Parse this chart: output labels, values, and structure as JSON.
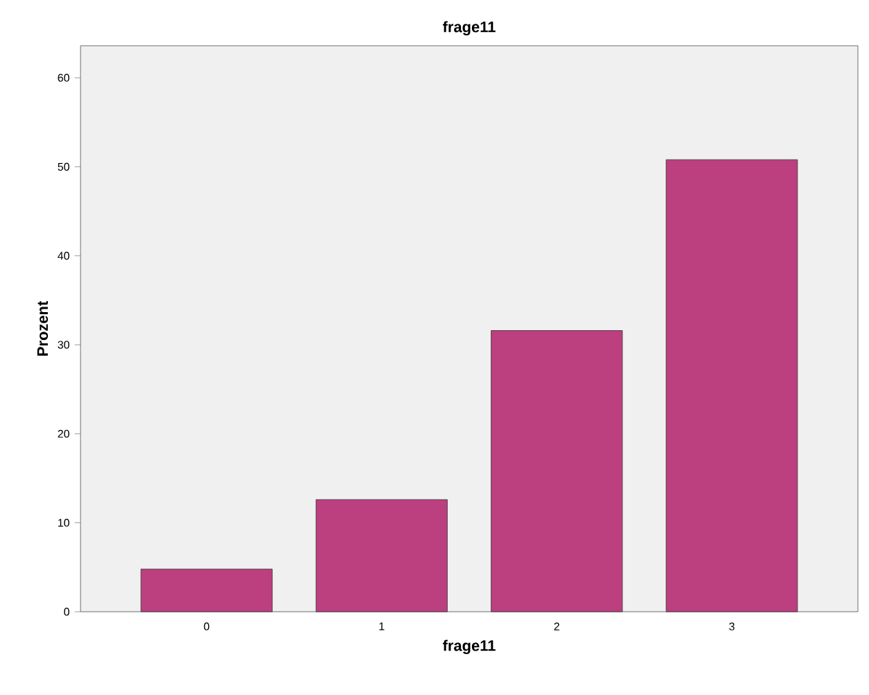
{
  "chart_data": {
    "type": "bar",
    "title": "frage11",
    "xlabel": "frage11",
    "ylabel": "Prozent",
    "categories": [
      "0",
      "1",
      "2",
      "3"
    ],
    "values": [
      4.8,
      12.6,
      31.6,
      50.8
    ],
    "color": "#bc3f7f",
    "ylim": [
      0,
      63.6
    ],
    "yticks": [
      0,
      10,
      20,
      30,
      40,
      50,
      60
    ],
    "grid": false
  }
}
